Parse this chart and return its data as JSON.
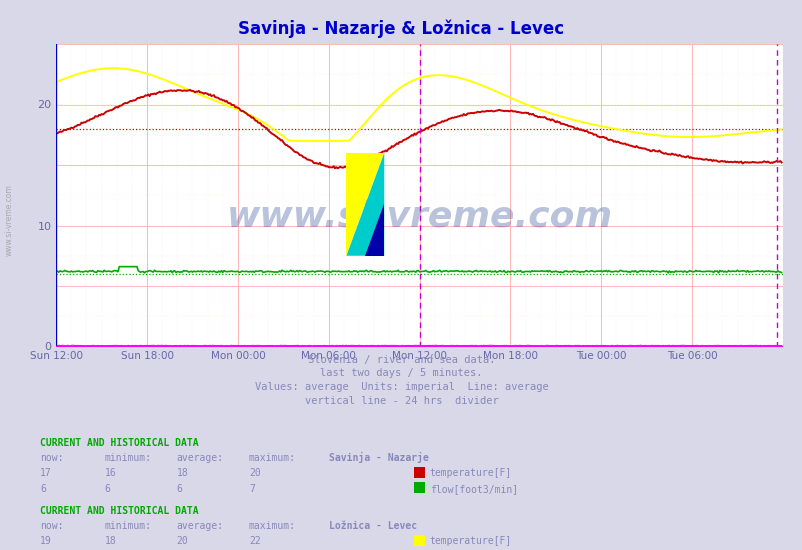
{
  "title": "Savinja - Nazarje & Ložnica - Levec",
  "title_color": "#0000cc",
  "bg_color": "#d8d8e8",
  "plot_bg_color": "#ffffff",
  "grid_color_major": "#ffaaaa",
  "grid_color_minor": "#ffdddd",
  "tick_color": "#6666aa",
  "xlim": [
    0,
    576
  ],
  "ylim": [
    0,
    25
  ],
  "yticks": [
    0,
    10,
    20
  ],
  "n_points": 576,
  "savinja_temp_color": "#cc0000",
  "savinja_flow_color": "#00aa00",
  "loznica_temp_color": "#ffff00",
  "loznica_flow_color": "#ff00ff",
  "savinja_temp_avg": 18,
  "savinja_flow_avg": 6,
  "loznica_temp_avg": 20,
  "loznica_flow_avg": 0,
  "savinja_temp_min": 16,
  "savinja_temp_max": 20,
  "savinja_flow_min": 6,
  "savinja_flow_max": 7,
  "loznica_temp_min": 18,
  "loznica_temp_max": 22,
  "loznica_flow_min": 0,
  "loznica_flow_max": 1,
  "savinja_temp_now": 17,
  "savinja_flow_now": 6,
  "loznica_temp_now": 19,
  "loznica_flow_now": 0,
  "xtick_labels": [
    "Sun 12:00",
    "Sun 18:00",
    "Mon 00:00",
    "Mon 06:00",
    "Mon 12:00",
    "Mon 18:00",
    "Tue 00:00",
    "Tue 06:00"
  ],
  "xtick_positions": [
    0,
    72,
    144,
    216,
    288,
    360,
    432,
    504
  ],
  "divider_x": 288,
  "subtitle_lines": [
    "Slovenia / river and sea data.",
    "last two days / 5 minutes.",
    "Values: average  Units: imperial  Line: average",
    "vertical line - 24 hrs  divider"
  ],
  "watermark_text": "www.si-vreme.com",
  "watermark_color": "#1a3a8a",
  "watermark_alpha": 0.3,
  "info_color": "#8888bb",
  "header_color": "#00aa00",
  "title_bold_color": "#4444bb"
}
